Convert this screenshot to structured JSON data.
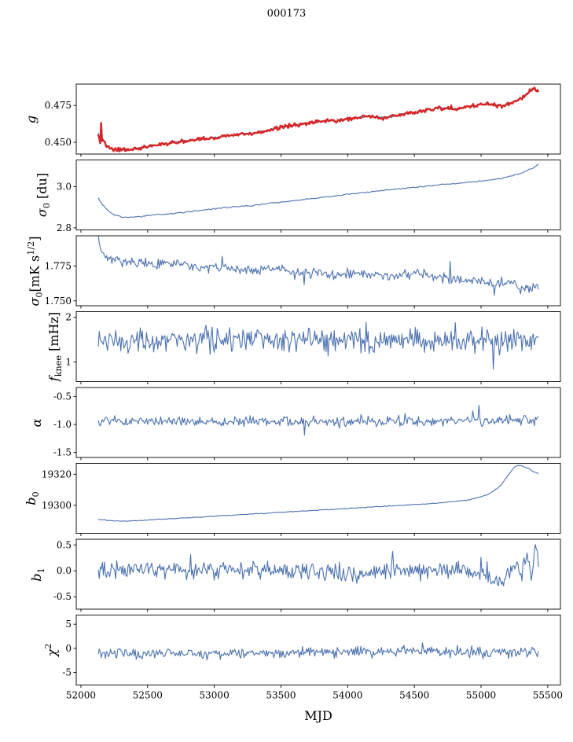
{
  "colors": {
    "blue": "#4c72b0",
    "red": "#d62728",
    "axis": "#000000"
  },
  "chart_data": {
    "type": "line",
    "title": "000173",
    "xlabel": "MJD",
    "x_axis": {
      "xlim": [
        51965,
        55595
      ],
      "tick_values": [
        52000,
        52500,
        53000,
        53500,
        54000,
        54500,
        55000,
        55500
      ],
      "tick_labels": [
        "52000",
        "52500",
        "53000",
        "53500",
        "54000",
        "54500",
        "55000",
        "55500"
      ]
    },
    "panels": [
      {
        "name": "g",
        "ylabel_segments": [
          {
            "t": "g",
            "i": 1
          }
        ],
        "ylim": [
          0.442,
          0.4895
        ],
        "yticks": [
          {
            "v": 0.475,
            "label": "0.475"
          },
          {
            "v": 0.45,
            "label": "0.450"
          }
        ],
        "anchors": [
          [
            52130,
            0.456
          ],
          [
            52133,
            0.472
          ],
          [
            52136,
            0.445
          ],
          [
            52140,
            0.47
          ],
          [
            52144,
            0.448
          ],
          [
            52150,
            0.466
          ],
          [
            52157,
            0.45
          ],
          [
            52165,
            0.453
          ],
          [
            52180,
            0.449
          ],
          [
            52200,
            0.447
          ],
          [
            52250,
            0.4452
          ],
          [
            52300,
            0.4447
          ],
          [
            52350,
            0.4449
          ],
          [
            52420,
            0.4456
          ],
          [
            52500,
            0.447
          ],
          [
            52600,
            0.4486
          ],
          [
            52700,
            0.45
          ],
          [
            52800,
            0.4511
          ],
          [
            52900,
            0.452
          ],
          [
            53000,
            0.4531
          ],
          [
            53100,
            0.4546
          ],
          [
            53200,
            0.4556
          ],
          [
            53300,
            0.4561
          ],
          [
            53400,
            0.458
          ],
          [
            53500,
            0.4601
          ],
          [
            53600,
            0.4616
          ],
          [
            53700,
            0.463
          ],
          [
            53800,
            0.4641
          ],
          [
            53850,
            0.465
          ],
          [
            53920,
            0.4644
          ],
          [
            54000,
            0.4656
          ],
          [
            54100,
            0.4671
          ],
          [
            54160,
            0.4676
          ],
          [
            54250,
            0.4666
          ],
          [
            54320,
            0.4672
          ],
          [
            54400,
            0.4691
          ],
          [
            54500,
            0.4701
          ],
          [
            54600,
            0.4721
          ],
          [
            54700,
            0.4731
          ],
          [
            54760,
            0.4736
          ],
          [
            54820,
            0.4726
          ],
          [
            54900,
            0.4741
          ],
          [
            55000,
            0.4756
          ],
          [
            55060,
            0.4761
          ],
          [
            55110,
            0.4751
          ],
          [
            55160,
            0.4747
          ],
          [
            55210,
            0.4761
          ],
          [
            55260,
            0.4781
          ],
          [
            55310,
            0.4801
          ],
          [
            55355,
            0.4841
          ],
          [
            55385,
            0.4862
          ],
          [
            55410,
            0.4852
          ],
          [
            55430,
            0.4846
          ]
        ],
        "series": [
          {
            "name": "g-blue",
            "color": "blue",
            "width": 1.1,
            "n": 460,
            "noise": 0.0006,
            "spike": 0
          },
          {
            "name": "g-red",
            "color": "red",
            "width": 2.4,
            "n": 460,
            "noise": 0.0013,
            "spike": 0
          }
        ]
      },
      {
        "name": "sigma0-du",
        "ylabel_segments": [
          {
            "t": "σ",
            "i": 1
          },
          {
            "t": "0",
            "sub": 1
          },
          {
            "t": " [du]"
          }
        ],
        "ylim": [
          2.79,
          3.13
        ],
        "yticks": [
          {
            "v": 3.0,
            "label": "3.0"
          },
          {
            "v": 2.8,
            "label": "2.8"
          }
        ],
        "series": [
          {
            "name": "sigma0-du",
            "color": "blue",
            "width": 1.1,
            "n": 320,
            "noise": 0.003,
            "spike": 0,
            "anchors": [
              [
                52130,
                2.945
              ],
              [
                52160,
                2.915
              ],
              [
                52200,
                2.885
              ],
              [
                52250,
                2.862
              ],
              [
                52300,
                2.853
              ],
              [
                52350,
                2.85
              ],
              [
                52420,
                2.853
              ],
              [
                52500,
                2.86
              ],
              [
                52600,
                2.865
              ],
              [
                52700,
                2.87
              ],
              [
                52800,
                2.878
              ],
              [
                52900,
                2.885
              ],
              [
                53000,
                2.893
              ],
              [
                53100,
                2.9
              ],
              [
                53200,
                2.905
              ],
              [
                53300,
                2.91
              ],
              [
                53400,
                2.918
              ],
              [
                53500,
                2.925
              ],
              [
                53600,
                2.933
              ],
              [
                53700,
                2.94
              ],
              [
                53800,
                2.948
              ],
              [
                53900,
                2.955
              ],
              [
                54000,
                2.963
              ],
              [
                54100,
                2.97
              ],
              [
                54200,
                2.978
              ],
              [
                54300,
                2.985
              ],
              [
                54400,
                2.99
              ],
              [
                54500,
                2.998
              ],
              [
                54600,
                3.003
              ],
              [
                54700,
                3.01
              ],
              [
                54800,
                3.015
              ],
              [
                54900,
                3.02
              ],
              [
                55000,
                3.028
              ],
              [
                55100,
                3.035
              ],
              [
                55150,
                3.04
              ],
              [
                55200,
                3.048
              ],
              [
                55250,
                3.055
              ],
              [
                55300,
                3.065
              ],
              [
                55350,
                3.08
              ],
              [
                55400,
                3.095
              ],
              [
                55430,
                3.11
              ]
            ]
          }
        ]
      },
      {
        "name": "sigma0-mks",
        "ylabel_segments": [
          {
            "t": "σ",
            "i": 1
          },
          {
            "t": "0",
            "sub": 1
          },
          {
            "t": "[mK s"
          },
          {
            "t": "1/2",
            "sup": 1
          },
          {
            "t": "]"
          }
        ],
        "ylim": [
          1.7465,
          1.7965
        ],
        "yticks": [
          {
            "v": 1.775,
            "label": "1.775"
          },
          {
            "v": 1.75,
            "label": "1.750"
          }
        ],
        "series": [
          {
            "name": "sigma0-mks",
            "color": "blue",
            "width": 1.1,
            "n": 420,
            "noise": 0.0035,
            "spike": 0.015,
            "anchors": [
              [
                52130,
                1.795
              ],
              [
                52140,
                1.79
              ],
              [
                52160,
                1.784
              ],
              [
                52200,
                1.78
              ],
              [
                52300,
                1.778
              ],
              [
                52500,
                1.776
              ],
              [
                52700,
                1.777
              ],
              [
                52900,
                1.7745
              ],
              [
                53100,
                1.773
              ],
              [
                53300,
                1.772
              ],
              [
                53500,
                1.773
              ],
              [
                53700,
                1.77
              ],
              [
                53900,
                1.769
              ],
              [
                54100,
                1.77
              ],
              [
                54300,
                1.768
              ],
              [
                54500,
                1.769
              ],
              [
                54700,
                1.767
              ],
              [
                54900,
                1.764
              ],
              [
                55000,
                1.765
              ],
              [
                55100,
                1.762
              ],
              [
                55200,
                1.763
              ],
              [
                55300,
                1.759
              ],
              [
                55350,
                1.757
              ],
              [
                55400,
                1.76
              ],
              [
                55430,
                1.761
              ]
            ]
          }
        ]
      },
      {
        "name": "fknee",
        "ylabel_segments": [
          {
            "t": "f",
            "i": 1
          },
          {
            "t": "knee",
            "sub": 1
          },
          {
            "t": " [mHz]"
          }
        ],
        "ylim": [
          0.56,
          2.125
        ],
        "yticks": [
          {
            "v": 2,
            "label": "2"
          },
          {
            "v": 1,
            "label": "1"
          }
        ],
        "series": [
          {
            "name": "fknee",
            "color": "blue",
            "width": 1.1,
            "n": 430,
            "noise": 0.28,
            "spike": 0.008,
            "anchors": [
              [
                52130,
                1.55
              ],
              [
                52400,
                1.45
              ],
              [
                53000,
                1.5
              ],
              [
                53800,
                1.48
              ],
              [
                54500,
                1.52
              ],
              [
                55000,
                1.45
              ],
              [
                55430,
                1.5
              ]
            ]
          }
        ]
      },
      {
        "name": "alpha",
        "ylabel_segments": [
          {
            "t": "α",
            "i": 1
          }
        ],
        "ylim": [
          -1.59,
          -0.34
        ],
        "yticks": [
          {
            "v": -0.5,
            "label": "-0.5"
          },
          {
            "v": -1.0,
            "label": "-1.0"
          },
          {
            "v": -1.5,
            "label": "-1.5"
          }
        ],
        "series": [
          {
            "name": "alpha",
            "color": "blue",
            "width": 1.1,
            "n": 430,
            "noise": 0.09,
            "spike": 0.02,
            "anchors": [
              [
                52130,
                -0.93
              ],
              [
                53000,
                -0.96
              ],
              [
                54000,
                -0.95
              ],
              [
                55000,
                -0.94
              ],
              [
                55430,
                -0.93
              ]
            ]
          }
        ]
      },
      {
        "name": "b0",
        "ylabel_segments": [
          {
            "t": "b",
            "i": 1
          },
          {
            "t": "0",
            "sub": 1
          }
        ],
        "ylim": [
          19282,
          19327
        ],
        "yticks": [
          {
            "v": 19320,
            "label": "19320"
          },
          {
            "v": 19300,
            "label": "19300"
          }
        ],
        "series": [
          {
            "name": "b0",
            "color": "blue",
            "width": 1.1,
            "n": 320,
            "noise": 0.25,
            "spike": 0,
            "anchors": [
              [
                52130,
                19291.0
              ],
              [
                52200,
                19290.3
              ],
              [
                52300,
                19289.8
              ],
              [
                52400,
                19290.0
              ],
              [
                52600,
                19291.0
              ],
              [
                52800,
                19292.0
              ],
              [
                53000,
                19293.0
              ],
              [
                53200,
                19294.0
              ],
              [
                53400,
                19295.0
              ],
              [
                53600,
                19296.0
              ],
              [
                53800,
                19297.0
              ],
              [
                54000,
                19298.0
              ],
              [
                54200,
                19299.0
              ],
              [
                54400,
                19300.0
              ],
              [
                54600,
                19301.0
              ],
              [
                54800,
                19302.5
              ],
              [
                54900,
                19303.5
              ],
              [
                55000,
                19305.5
              ],
              [
                55050,
                19307.0
              ],
              [
                55100,
                19309.5
              ],
              [
                55150,
                19313.0
              ],
              [
                55200,
                19319.0
              ],
              [
                55250,
                19324.5
              ],
              [
                55280,
                19326.0
              ],
              [
                55320,
                19325.0
              ],
              [
                55360,
                19323.5
              ],
              [
                55400,
                19321.5
              ],
              [
                55430,
                19320.5
              ]
            ]
          }
        ]
      },
      {
        "name": "b1",
        "ylabel_segments": [
          {
            "t": "b",
            "i": 1
          },
          {
            "t": "1",
            "sub": 1
          }
        ],
        "ylim": [
          -0.74,
          0.61
        ],
        "yticks": [
          {
            "v": 0.5,
            "label": "0.5"
          },
          {
            "v": 0.0,
            "label": "0.0"
          },
          {
            "v": -0.5,
            "label": "-0.5"
          }
        ],
        "series": [
          {
            "name": "b1",
            "color": "blue",
            "width": 1.1,
            "n": 430,
            "noise": 0.17,
            "spike": 0.02,
            "anchors": [
              [
                52130,
                0.0
              ],
              [
                53000,
                0.02
              ],
              [
                54000,
                -0.02
              ],
              [
                54800,
                0.0
              ],
              [
                55050,
                -0.05
              ],
              [
                55120,
                -0.25
              ],
              [
                55180,
                -0.15
              ],
              [
                55250,
                0.05
              ],
              [
                55300,
                0.0
              ],
              [
                55350,
                0.3
              ],
              [
                55380,
                -0.2
              ],
              [
                55400,
                0.4
              ],
              [
                55430,
                0.2
              ]
            ]
          }
        ]
      },
      {
        "name": "chi2",
        "ylabel_segments": [
          {
            "t": "χ",
            "i": 1
          },
          {
            "t": "2",
            "sup": 1
          }
        ],
        "ylim": [
          -7.6,
          6.9
        ],
        "yticks": [
          {
            "v": 5,
            "label": "5"
          },
          {
            "v": 0,
            "label": "0"
          },
          {
            "v": -5,
            "label": "-5"
          }
        ],
        "series": [
          {
            "name": "chi2",
            "color": "blue",
            "width": 1.1,
            "n": 430,
            "noise": 1.1,
            "spike": 0.02,
            "anchors": [
              [
                52130,
                -1.1
              ],
              [
                53000,
                -1.0
              ],
              [
                54000,
                -0.9
              ],
              [
                54680,
                -0.4
              ],
              [
                54720,
                -0.9
              ],
              [
                55430,
                -0.7
              ]
            ]
          }
        ]
      }
    ]
  }
}
